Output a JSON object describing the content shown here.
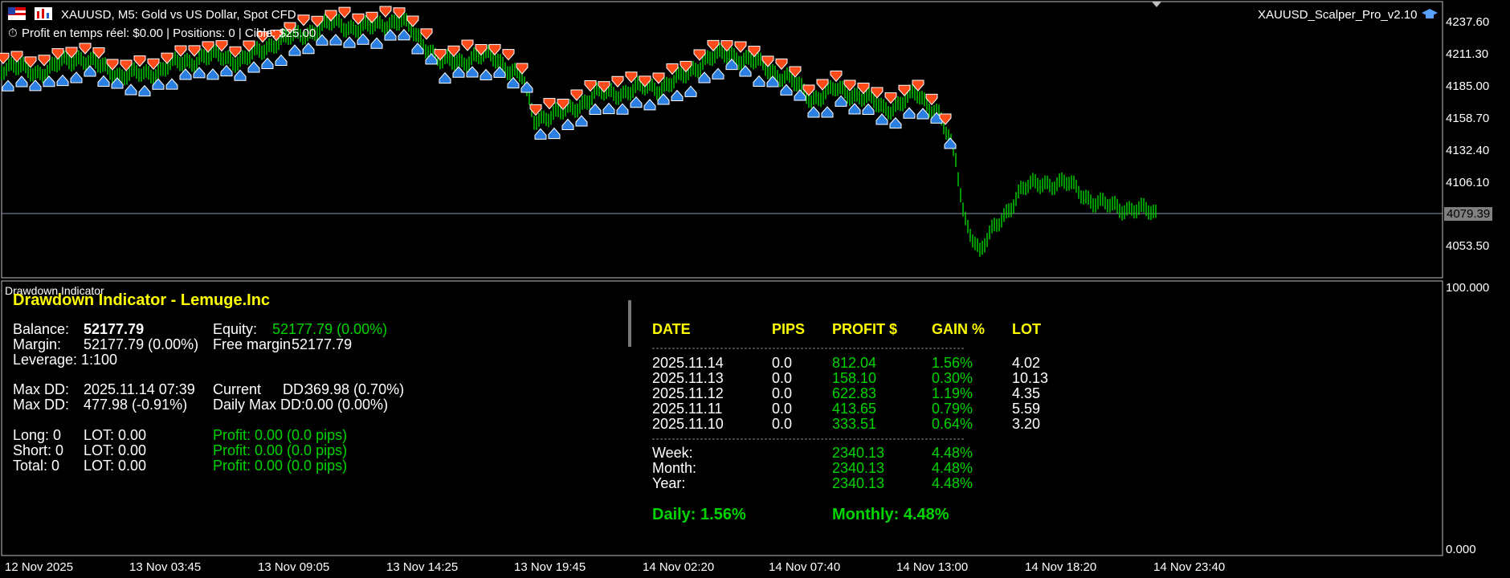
{
  "header": {
    "symbol_info": "XAUUSD, M5:  Gold vs US Dollar, Spot CFD",
    "profit_line": "Profit en temps réel: $0.00 | Positions: 0 | Cible: $25.00",
    "ea_name": "XAUUSD_Scalper_Pro_v2.10",
    "timer_icon": "timer-icon",
    "flag_icon": "flag-icon",
    "chart_icon": "chart-icon",
    "cap_icon": "graduation-cap-icon"
  },
  "price_axis": {
    "labels": [
      "4237.60",
      "4211.30",
      "4185.00",
      "4158.70",
      "4132.40",
      "4106.10",
      "4053.50"
    ],
    "current_price": "4079.39"
  },
  "indicator_axis": {
    "top": "100.000",
    "bottom": "0.000"
  },
  "time_axis": [
    "12 Nov 2025",
    "13 Nov 03:45",
    "13 Nov 09:05",
    "13 Nov 14:25",
    "13 Nov 19:45",
    "14 Nov 02:20",
    "14 Nov 07:40",
    "14 Nov 13:00",
    "14 Nov 18:20",
    "14 Nov 23:40"
  ],
  "indicator": {
    "window_label": "Drawdown Indicator",
    "title": "Drawdown Indicator - Lemuge.Inc",
    "balance_label": "Balance:",
    "balance_value": "52177.79",
    "equity_label": "Equity:",
    "equity_value": "52177.79 (0.00%)",
    "margin_label": "Margin:",
    "margin_value": "52177.79 (0.00%)",
    "free_margin_label": "Free margin",
    "free_margin_value": "52177.79",
    "leverage_label": "Leverage:",
    "leverage_value": "1:100",
    "maxdd1_label": "Max DD:",
    "maxdd1_value": "2025.11.14 07:39",
    "current_dd_label": "Current",
    "current_dd_label2": "DD:",
    "current_dd_value": "369.98  (0.70%)",
    "maxdd2_label": "Max DD:",
    "maxdd2_value": "477.98 (-0.91%)",
    "daily_maxdd_label": "Daily Max DD:",
    "daily_maxdd_value": "0.00  (0.00%)",
    "long_label": "Long: 0",
    "long_lot": "LOT: 0.00",
    "long_profit": "Profit: 0.00  (0.0 pips)",
    "short_label": "Short: 0",
    "short_lot": "LOT: 0.00",
    "short_profit": "Profit: 0.00  (0.0 pips)",
    "total_label": "Total: 0",
    "total_lot": "LOT: 0.00",
    "total_profit": "Profit: 0.00  (0.0 pips)"
  },
  "stats_table": {
    "headers": [
      "DATE",
      "PIPS",
      "PROFIT $",
      "GAIN %",
      "LOT"
    ],
    "rows": [
      [
        "2025.11.14",
        "0.0",
        "812.04",
        "1.56%",
        "4.02"
      ],
      [
        "2025.11.13",
        "0.0",
        "158.10",
        "0.30%",
        "10.13"
      ],
      [
        "2025.11.12",
        "0.0",
        "622.83",
        "1.19%",
        "4.35"
      ],
      [
        "2025.11.11",
        "0.0",
        "413.65",
        "0.79%",
        "5.59"
      ],
      [
        "2025.11.10",
        "0.0",
        "333.51",
        "0.64%",
        "3.20"
      ]
    ],
    "summary": [
      [
        "Week:",
        "2340.13",
        "4.48%"
      ],
      [
        "Month:",
        "2340.13",
        "4.48%"
      ],
      [
        "Year:",
        "2340.13",
        "4.48%"
      ]
    ],
    "daily": "Daily: 1.56%",
    "monthly": "Monthly: 4.48%"
  },
  "colors": {
    "bull": "#00c800",
    "sell_arrow": "#ff4a1a",
    "buy_arrow": "#2a7fe0",
    "yellow": "#ffff00",
    "green_text": "#00d400"
  }
}
